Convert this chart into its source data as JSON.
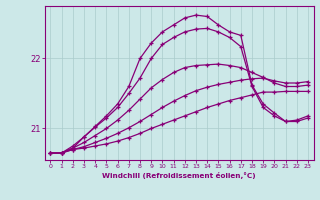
{
  "xlabel": "Windchill (Refroidissement éolien,°C)",
  "background_color": "#cce8e8",
  "grid_color": "#aacccc",
  "line_color": "#880077",
  "xlim": [
    -0.5,
    23.5
  ],
  "ylim": [
    20.55,
    22.75
  ],
  "yticks": [
    21,
    22
  ],
  "xticks": [
    0,
    1,
    2,
    3,
    4,
    5,
    6,
    7,
    8,
    9,
    10,
    11,
    12,
    13,
    14,
    15,
    16,
    17,
    18,
    19,
    20,
    21,
    22,
    23
  ],
  "series": [
    {
      "x": [
        0,
        1,
        2,
        3,
        4,
        5,
        6,
        7,
        8,
        9,
        10,
        11,
        12,
        13,
        14,
        15,
        16,
        17,
        18,
        19,
        20,
        21,
        22,
        23
      ],
      "y": [
        20.65,
        20.65,
        20.7,
        20.72,
        20.75,
        20.78,
        20.82,
        20.87,
        20.93,
        21.0,
        21.06,
        21.12,
        21.18,
        21.24,
        21.3,
        21.35,
        21.4,
        21.44,
        21.48,
        21.52,
        21.52,
        21.53,
        21.53,
        21.53
      ]
    },
    {
      "x": [
        0,
        1,
        2,
        3,
        4,
        5,
        6,
        7,
        8,
        9,
        10,
        11,
        12,
        13,
        14,
        15,
        16,
        17,
        18,
        19,
        20,
        21,
        22,
        23
      ],
      "y": [
        20.65,
        20.65,
        20.7,
        20.74,
        20.8,
        20.86,
        20.93,
        21.01,
        21.1,
        21.2,
        21.3,
        21.39,
        21.47,
        21.54,
        21.59,
        21.63,
        21.66,
        21.69,
        21.71,
        21.72,
        21.68,
        21.65,
        21.65,
        21.67
      ]
    },
    {
      "x": [
        0,
        1,
        2,
        3,
        4,
        5,
        6,
        7,
        8,
        9,
        10,
        11,
        12,
        13,
        14,
        15,
        16,
        17,
        18,
        19,
        20,
        21,
        22,
        23
      ],
      "y": [
        20.65,
        20.65,
        20.72,
        20.8,
        20.9,
        21.0,
        21.12,
        21.26,
        21.42,
        21.58,
        21.7,
        21.8,
        21.87,
        21.9,
        21.91,
        21.92,
        21.9,
        21.87,
        21.8,
        21.73,
        21.65,
        21.6,
        21.6,
        21.62
      ]
    },
    {
      "x": [
        0,
        1,
        2,
        3,
        4,
        5,
        6,
        7,
        8,
        9,
        10,
        11,
        12,
        13,
        14,
        15,
        16,
        17,
        18,
        19,
        20,
        21,
        22,
        23
      ],
      "y": [
        20.65,
        20.65,
        20.75,
        20.88,
        21.02,
        21.15,
        21.3,
        21.5,
        21.72,
        22.0,
        22.2,
        22.3,
        22.38,
        22.42,
        22.43,
        22.38,
        22.3,
        22.17,
        21.6,
        21.3,
        21.18,
        21.1,
        21.1,
        21.15
      ]
    },
    {
      "x": [
        1,
        2,
        3,
        4,
        5,
        6,
        7,
        8,
        9,
        10,
        11,
        12,
        13,
        14,
        15,
        16,
        17,
        18,
        19,
        20,
        21,
        22,
        23
      ],
      "y": [
        20.65,
        20.72,
        20.88,
        21.03,
        21.18,
        21.35,
        21.6,
        22.0,
        22.22,
        22.38,
        22.48,
        22.58,
        22.62,
        22.6,
        22.48,
        22.38,
        22.33,
        21.62,
        21.35,
        21.22,
        21.1,
        21.12,
        21.18
      ]
    }
  ]
}
